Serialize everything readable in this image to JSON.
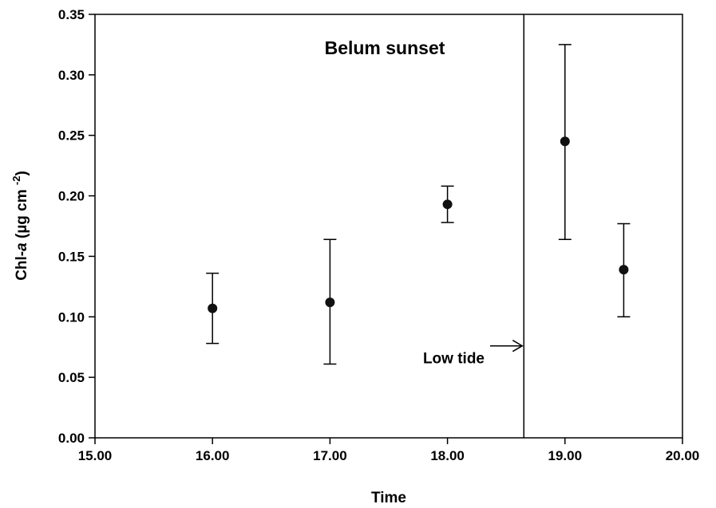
{
  "chart_data": {
    "type": "scatter",
    "title": "",
    "xlabel": "Time",
    "ylabel": {
      "prefix": "Chl-",
      "italic": "a",
      "unit": " (µg cm ",
      "superscript": "-2",
      "close": ")"
    },
    "xlim": [
      15.0,
      20.0
    ],
    "ylim": [
      0.0,
      0.35
    ],
    "x_ticks": [
      "15.00",
      "16.00",
      "17.00",
      "18.00",
      "19.00",
      "20.00"
    ],
    "y_ticks": [
      "0.00",
      "0.05",
      "0.10",
      "0.15",
      "0.20",
      "0.25",
      "0.30",
      "0.35"
    ],
    "grid": false,
    "points": [
      {
        "x": 16.0,
        "y": 0.107,
        "err_low": 0.078,
        "err_high": 0.136
      },
      {
        "x": 17.0,
        "y": 0.112,
        "err_low": 0.061,
        "err_high": 0.164
      },
      {
        "x": 18.0,
        "y": 0.193,
        "err_low": 0.178,
        "err_high": 0.208
      },
      {
        "x": 19.0,
        "y": 0.245,
        "err_low": 0.164,
        "err_high": 0.325
      },
      {
        "x": 19.5,
        "y": 0.139,
        "err_low": 0.1,
        "err_high": 0.177
      }
    ],
    "vline_x": 18.65,
    "annotations": {
      "site": "Belum sunset",
      "low_tide": "Low tide",
      "low_tide_y": 0.076
    }
  }
}
